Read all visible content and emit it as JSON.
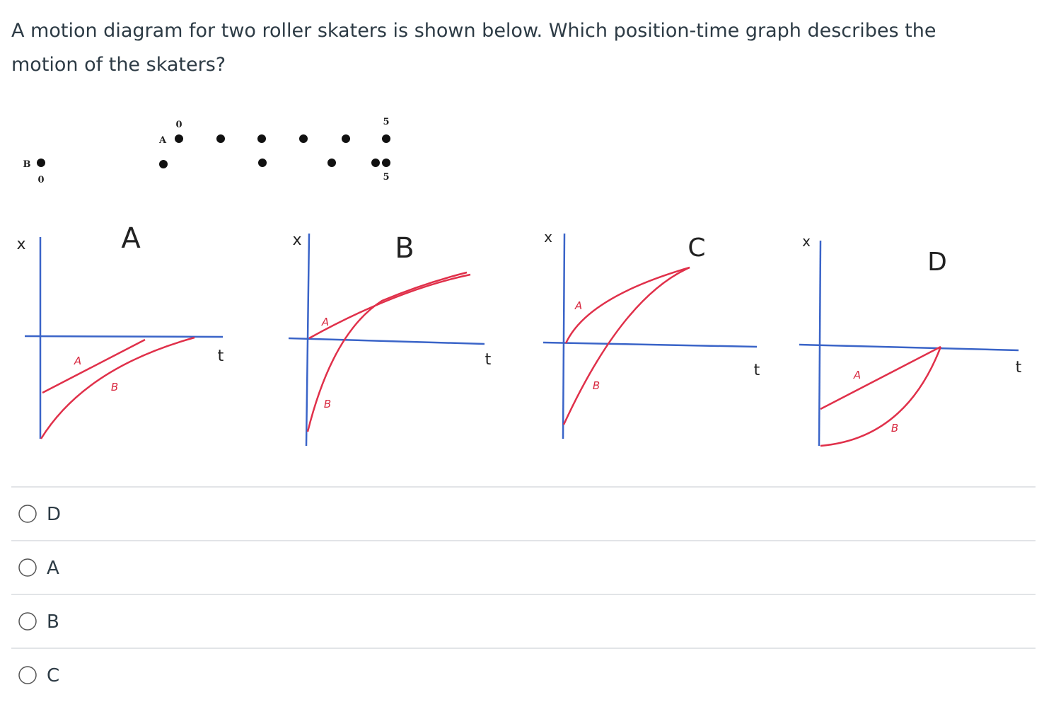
{
  "question": "A motion diagram for two roller skaters is shown below.  Which position-time graph describes the motion of the skaters?",
  "motion_diagram": {
    "skater_a": {
      "label": "A",
      "start": "0",
      "end": "5"
    },
    "skater_b": {
      "label": "B",
      "start": "0",
      "end": "5"
    }
  },
  "graphs": [
    {
      "title": "A",
      "position_axis": "x",
      "time_axis": "t",
      "curves": [
        "A",
        "B"
      ]
    },
    {
      "title": "B",
      "position_axis": "x",
      "time_axis": "t",
      "curves": [
        "A",
        "B"
      ]
    },
    {
      "title": "C",
      "position_axis": "x",
      "time_axis": "t",
      "curves": [
        "A",
        "B"
      ]
    },
    {
      "title": "D",
      "position_axis": "x",
      "time_axis": "t",
      "curves": [
        "A",
        "B"
      ]
    }
  ],
  "options": [
    "D",
    "A",
    "B",
    "C"
  ]
}
